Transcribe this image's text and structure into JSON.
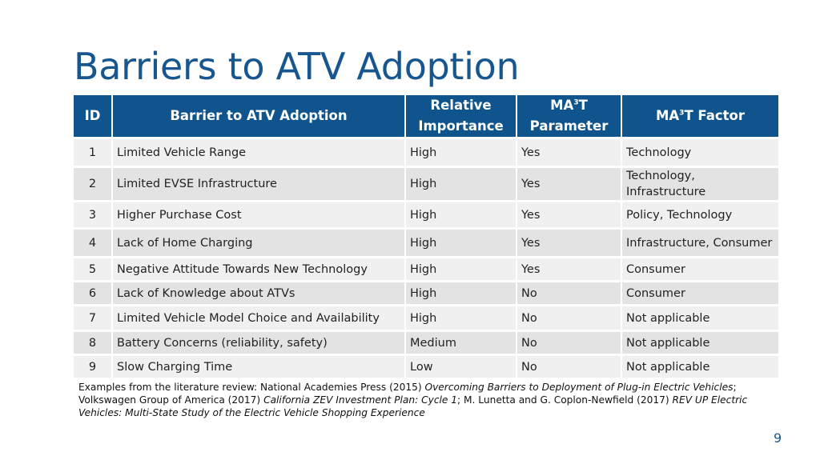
{
  "slide": {
    "title": "Barriers to ATV Adoption",
    "page_number": "9"
  },
  "table": {
    "headers": {
      "id": "ID",
      "barrier": "Barrier to ATV Adoption",
      "importance": "Relative Importance",
      "param_pre": "MA",
      "param_sup": "3",
      "param_post": "T Parameter",
      "factor_pre": "MA",
      "factor_sup": "3",
      "factor_post": "T Factor"
    },
    "rows": [
      {
        "id": "1",
        "barrier": "Limited Vehicle Range",
        "importance": "High",
        "parameter": "Yes",
        "factor": "Technology"
      },
      {
        "id": "2",
        "barrier": "Limited EVSE Infrastructure",
        "importance": "High",
        "parameter": "Yes",
        "factor": "Technology, Infrastructure"
      },
      {
        "id": "3",
        "barrier": "Higher Purchase Cost",
        "importance": "High",
        "parameter": "Yes",
        "factor": "Policy, Technology"
      },
      {
        "id": "4",
        "barrier": "Lack of Home Charging",
        "importance": "High",
        "parameter": "Yes",
        "factor": "Infrastructure, Consumer"
      },
      {
        "id": "5",
        "barrier": "Negative Attitude Towards New Technology",
        "importance": "High",
        "parameter": "Yes",
        "factor": "Consumer"
      },
      {
        "id": "6",
        "barrier": "Lack of Knowledge about ATVs",
        "importance": "High",
        "parameter": "No",
        "factor": "Consumer"
      },
      {
        "id": "7",
        "barrier": "Limited Vehicle Model Choice and Availability",
        "importance": "High",
        "parameter": "No",
        "factor": "Not applicable"
      },
      {
        "id": "8",
        "barrier": "Battery Concerns (reliability, safety)",
        "importance": "Medium",
        "parameter": "No",
        "factor": "Not applicable"
      },
      {
        "id": "9",
        "barrier": "Slow Charging Time",
        "importance": "Low",
        "parameter": "No",
        "factor": "Not applicable"
      }
    ]
  },
  "footnote": {
    "part1": "Examples from the literature review: National Academies Press (2015) ",
    "title1": "Overcoming Barriers to Deployment of Plug-in Electric Vehicles",
    "part2": "; Volkswagen Group of America (2017) ",
    "title2": "California ZEV Investment Plan: Cycle 1",
    "part3": "; M. Lunetta and G. Coplon-Newfield (2017) ",
    "title3": "REV UP Electric Vehicles: Multi-State Study of the Electric Vehicle Shopping Experience"
  },
  "colors": {
    "header_bg": "#0f548c",
    "title": "#17568e",
    "row_light": "#f0f0f0",
    "row_dark": "#e3e3e3"
  }
}
